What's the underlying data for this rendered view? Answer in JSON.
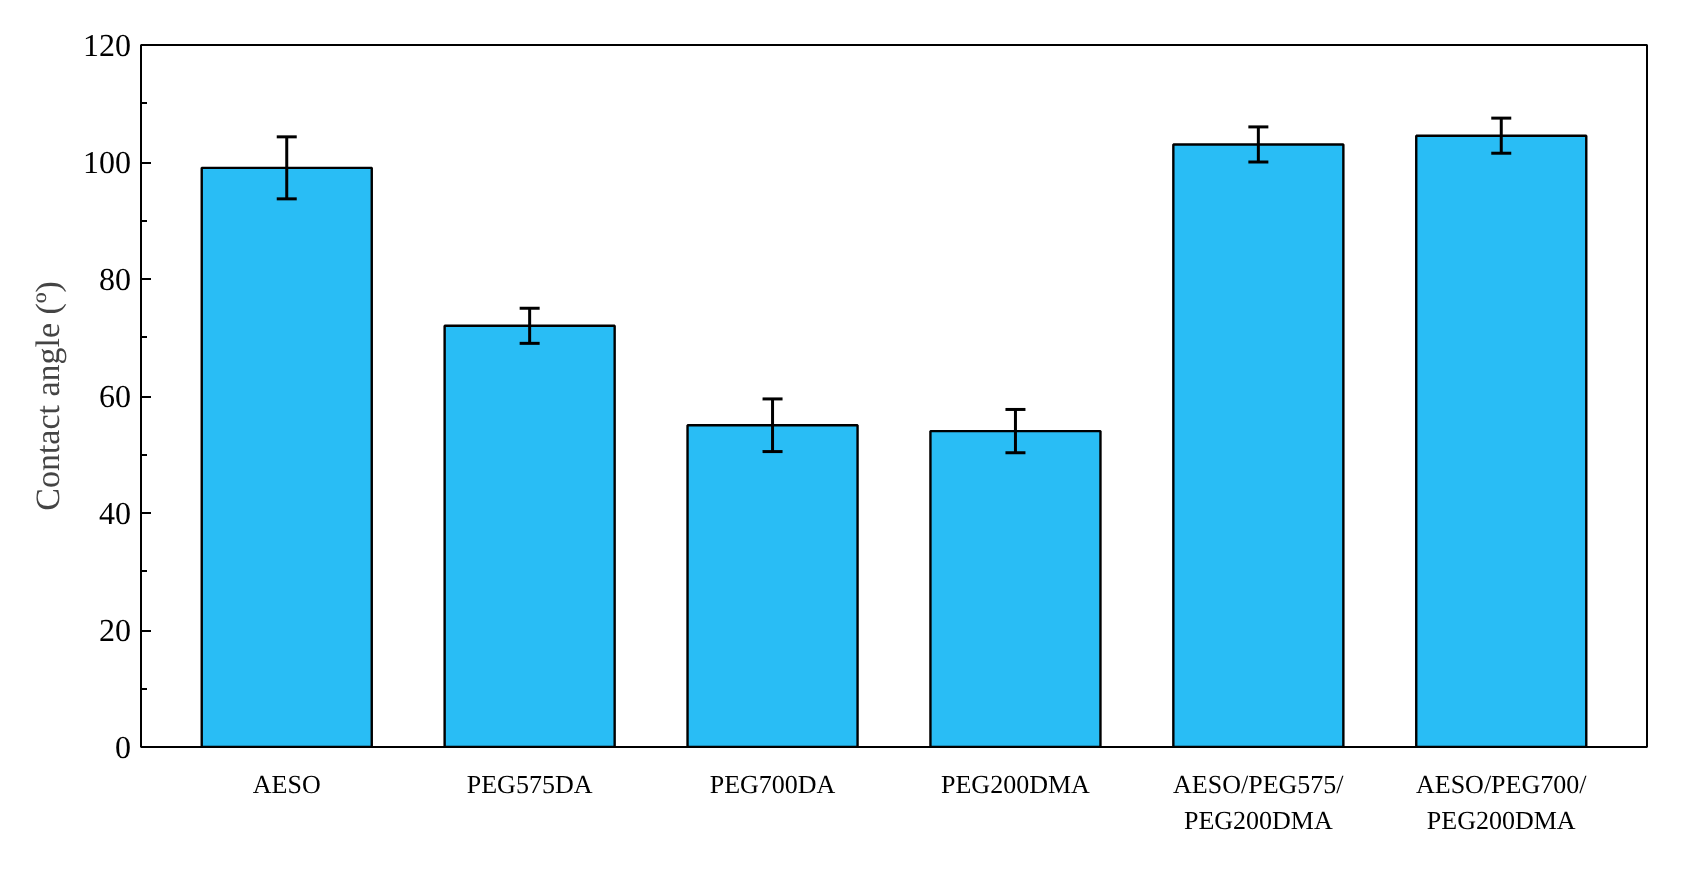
{
  "chart_data": {
    "type": "bar",
    "ylabel": "Contact angle (º)",
    "categories": [
      "AESO",
      "PEG575DA",
      "PEG700DA",
      "PEG200DMA",
      "AESO/PEG575/\nPEG200DMA",
      "AESO/PEG700/\nPEG200DMA"
    ],
    "values": [
      99,
      72,
      55,
      54,
      103,
      104.5
    ],
    "errors": [
      5.3,
      3,
      4.5,
      3.7,
      3,
      3
    ],
    "color": "#29bdf5",
    "ylim": [
      0,
      120
    ],
    "yticks": [
      0,
      20,
      40,
      60,
      80,
      100,
      120
    ],
    "grid": false
  }
}
